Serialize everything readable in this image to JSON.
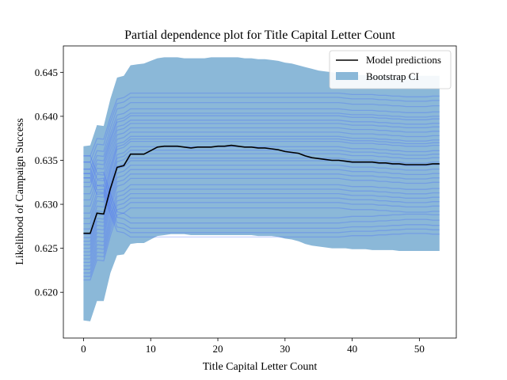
{
  "chart_data": {
    "type": "line",
    "title": "Partial dependence plot for Title Capital Letter Count",
    "xlabel": "Title Capital Letter Count",
    "ylabel": "Likelihood of Campaign Success",
    "xlim": [
      -3,
      55.5
    ],
    "ylim": [
      0.6148,
      0.648
    ],
    "xticks": [
      0,
      10,
      20,
      30,
      40,
      50
    ],
    "yticks": [
      0.62,
      0.625,
      0.63,
      0.635,
      0.64,
      0.645
    ],
    "xtick_labels": [
      "0",
      "10",
      "20",
      "30",
      "40",
      "50"
    ],
    "ytick_labels": [
      "0.620",
      "0.625",
      "0.630",
      "0.635",
      "0.640",
      "0.645"
    ],
    "legend": {
      "placement": "top-right",
      "entries": [
        "Model predictions",
        "Bootstrap CI"
      ]
    },
    "colors": {
      "mean_line": "#000000",
      "ci_band": "#8bb8d8",
      "bootstrap_lines": "#3a5fff"
    },
    "series": [
      {
        "name": "Model predictions",
        "kind": "line",
        "x": [
          0,
          1,
          2,
          3,
          4,
          5,
          6,
          7,
          8,
          9,
          10,
          11,
          12,
          13,
          14,
          15,
          16,
          17,
          18,
          19,
          20,
          21,
          22,
          23,
          24,
          25,
          26,
          27,
          28,
          29,
          30,
          31,
          32,
          33,
          34,
          35,
          36,
          37,
          38,
          39,
          40,
          41,
          42,
          43,
          44,
          45,
          46,
          47,
          48,
          49,
          50,
          51,
          52,
          53
        ],
        "y": [
          0.6267,
          0.6267,
          0.629,
          0.6289,
          0.6318,
          0.6342,
          0.6344,
          0.6357,
          0.6357,
          0.6357,
          0.6361,
          0.6365,
          0.6366,
          0.6366,
          0.6366,
          0.6365,
          0.6364,
          0.6365,
          0.6365,
          0.6365,
          0.6366,
          0.6366,
          0.6367,
          0.6366,
          0.6365,
          0.6365,
          0.6364,
          0.6364,
          0.6363,
          0.6362,
          0.636,
          0.6359,
          0.6358,
          0.6355,
          0.6353,
          0.6352,
          0.6351,
          0.635,
          0.635,
          0.6349,
          0.6348,
          0.6348,
          0.6348,
          0.6348,
          0.6347,
          0.6347,
          0.6346,
          0.6346,
          0.6345,
          0.6345,
          0.6345,
          0.6345,
          0.6346,
          0.6346
        ]
      },
      {
        "name": "Bootstrap CI",
        "kind": "band",
        "x": [
          0,
          1,
          2,
          3,
          4,
          5,
          6,
          7,
          8,
          9,
          10,
          11,
          12,
          13,
          14,
          15,
          16,
          17,
          18,
          19,
          20,
          21,
          22,
          23,
          24,
          25,
          26,
          27,
          28,
          29,
          30,
          31,
          32,
          33,
          34,
          35,
          36,
          37,
          38,
          39,
          40,
          41,
          42,
          43,
          44,
          45,
          46,
          47,
          48,
          49,
          50,
          51,
          52,
          53
        ],
        "lower": [
          0.6168,
          0.6167,
          0.619,
          0.619,
          0.6222,
          0.6242,
          0.6243,
          0.6255,
          0.6256,
          0.6256,
          0.626,
          0.6264,
          0.6265,
          0.6266,
          0.6266,
          0.6266,
          0.6265,
          0.6265,
          0.6265,
          0.6265,
          0.6265,
          0.6265,
          0.6265,
          0.6265,
          0.6265,
          0.6265,
          0.6264,
          0.6264,
          0.6264,
          0.6263,
          0.6261,
          0.626,
          0.6258,
          0.6255,
          0.6253,
          0.6252,
          0.6251,
          0.625,
          0.625,
          0.625,
          0.6249,
          0.6249,
          0.6249,
          0.6248,
          0.6248,
          0.6248,
          0.6248,
          0.6247,
          0.6247,
          0.6247,
          0.6247,
          0.6247,
          0.6247,
          0.6247
        ],
        "upper": [
          0.6366,
          0.6367,
          0.639,
          0.6389,
          0.642,
          0.6444,
          0.6446,
          0.6458,
          0.6459,
          0.646,
          0.6463,
          0.6466,
          0.6467,
          0.6467,
          0.6467,
          0.6466,
          0.6466,
          0.6466,
          0.6466,
          0.6467,
          0.6467,
          0.6467,
          0.6467,
          0.6467,
          0.6466,
          0.6466,
          0.6465,
          0.6465,
          0.6464,
          0.6463,
          0.6461,
          0.646,
          0.6458,
          0.6456,
          0.6454,
          0.6452,
          0.6451,
          0.645,
          0.6449,
          0.6448,
          0.6448,
          0.6447,
          0.6447,
          0.6447,
          0.6446,
          0.6446,
          0.6446,
          0.6446,
          0.6446,
          0.6446,
          0.6446,
          0.6446,
          0.6446,
          0.6446
        ]
      }
    ],
    "bootstrap_start_values": [
      0.6355,
      0.6348,
      0.634,
      0.6335,
      0.633,
      0.6325,
      0.632,
      0.6312,
      0.6305,
      0.6298,
      0.629,
      0.6284,
      0.6278,
      0.6272,
      0.6266,
      0.6262,
      0.6258,
      0.6254,
      0.625,
      0.6246,
      0.6242,
      0.6238,
      0.6234,
      0.623,
      0.6226,
      0.6222,
      0.6218,
      0.6214
    ],
    "bootstrap_plateau_values": [
      0.6423,
      0.6418,
      0.6412,
      0.6405,
      0.64,
      0.6397,
      0.6392,
      0.6388,
      0.6383,
      0.6378,
      0.6373,
      0.637,
      0.6367,
      0.6361,
      0.6357,
      0.6353,
      0.6348,
      0.6345,
      0.634,
      0.6335,
      0.633,
      0.6325,
      0.6318,
      0.6313,
      0.6308,
      0.6303,
      0.6298,
      0.6292,
      0.6288,
      0.6282,
      0.6276,
      0.6271,
      0.6266
    ]
  }
}
